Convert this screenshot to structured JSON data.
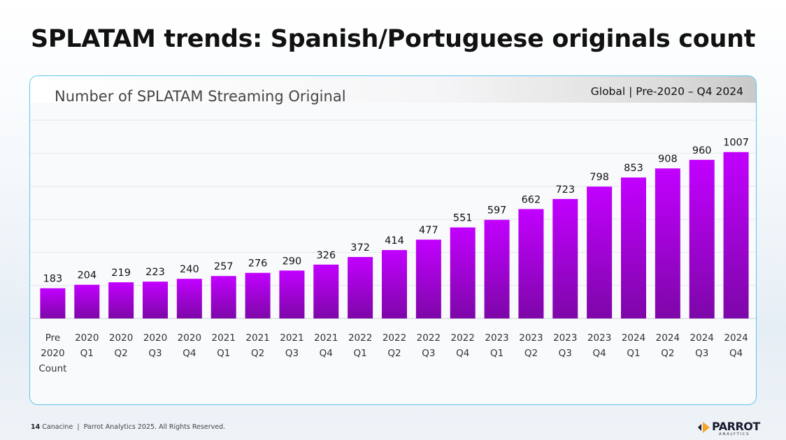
{
  "page": {
    "title": "SPLATAM trends: Spanish/Portuguese originals count",
    "footer_page": "14",
    "footer_brand": "Canacine",
    "footer_copyright": "Parrot Analytics 2025. All Rights Reserved.",
    "logo_word": "PARROT",
    "logo_sub": "ANALYTICS"
  },
  "colors": {
    "bar_top": "#c200ff",
    "bar_bottom": "#7d07a8",
    "panel_border": "#5ec6ef",
    "gridline": "#e3e5ea",
    "logo_accent": "#f5a524"
  },
  "chart_data": {
    "type": "bar",
    "title": "Number of SPLATAM Streaming Original",
    "scope": "Global | Pre-2020 – Q4 2024",
    "categories": [
      [
        "Pre",
        "2020",
        "Count"
      ],
      [
        "2020",
        "Q1"
      ],
      [
        "2020",
        "Q2"
      ],
      [
        "2020",
        "Q3"
      ],
      [
        "2020",
        "Q4"
      ],
      [
        "2021",
        "Q1"
      ],
      [
        "2021",
        "Q2"
      ],
      [
        "2021",
        "Q3"
      ],
      [
        "2021",
        "Q4"
      ],
      [
        "2022",
        "Q1"
      ],
      [
        "2022",
        "Q2"
      ],
      [
        "2022",
        "Q3"
      ],
      [
        "2022",
        "Q4"
      ],
      [
        "2023",
        "Q1"
      ],
      [
        "2023",
        "Q2"
      ],
      [
        "2023",
        "Q3"
      ],
      [
        "2023",
        "Q4"
      ],
      [
        "2024",
        "Q1"
      ],
      [
        "2024",
        "Q2"
      ],
      [
        "2024",
        "Q3"
      ],
      [
        "2024",
        "Q4"
      ]
    ],
    "values": [
      183,
      204,
      219,
      223,
      240,
      257,
      276,
      290,
      326,
      372,
      414,
      477,
      551,
      597,
      662,
      723,
      798,
      853,
      908,
      960,
      1007
    ],
    "xlabel": "",
    "ylabel": "",
    "ylim": [
      0,
      1200
    ],
    "grid": true,
    "legend": "none"
  }
}
